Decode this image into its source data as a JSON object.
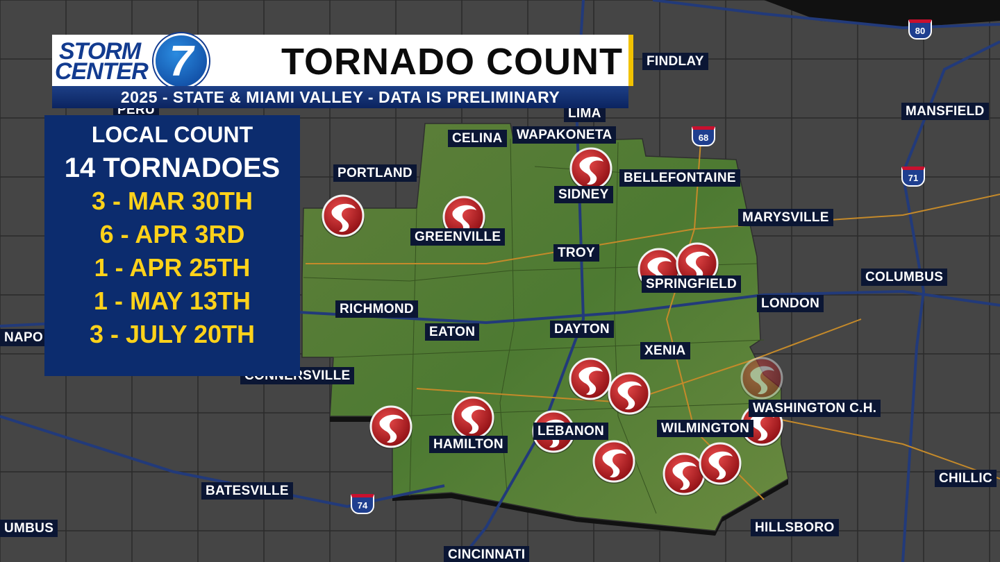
{
  "header": {
    "logo": {
      "line1": "STORM",
      "line2": "CENTER",
      "number": "7"
    },
    "title": "TORNADO COUNT",
    "subtitle": "2025 - STATE & MIAMI VALLEY - DATA IS PRELIMINARY"
  },
  "panel": {
    "heading": "LOCAL COUNT",
    "total": "14 TORNADOES",
    "entries": [
      "3 - MAR 30TH",
      "6 - APR 3RD",
      "1 - APR 25TH",
      "1 - MAY 13TH",
      "3 - JULY 20TH"
    ]
  },
  "map": {
    "cities": [
      "FINDLAY",
      "PERU",
      "LIMA",
      "MANSFIELD",
      "CELINA",
      "WAPAKONETA",
      "PORTLAND",
      "SIDNEY",
      "BELLEFONTAINE",
      "GREENVILLE",
      "MARYSVILLE",
      "TROY",
      "SPRINGFIELD",
      "COLUMBUS",
      "LONDON",
      "RICHMOND",
      "DAYTON",
      "EATON",
      "NAPO",
      "XENIA",
      "CONNERSVILLE",
      "WASHINGTON C.H.",
      "HAMILTON",
      "LEBANON",
      "WILMINGTON",
      "CHILLIC",
      "BATESVILLE",
      "HILLSBORO",
      "UMBUS",
      "CINCINNATI"
    ],
    "highway_shields": [
      "80",
      "71",
      "68",
      "74"
    ]
  }
}
